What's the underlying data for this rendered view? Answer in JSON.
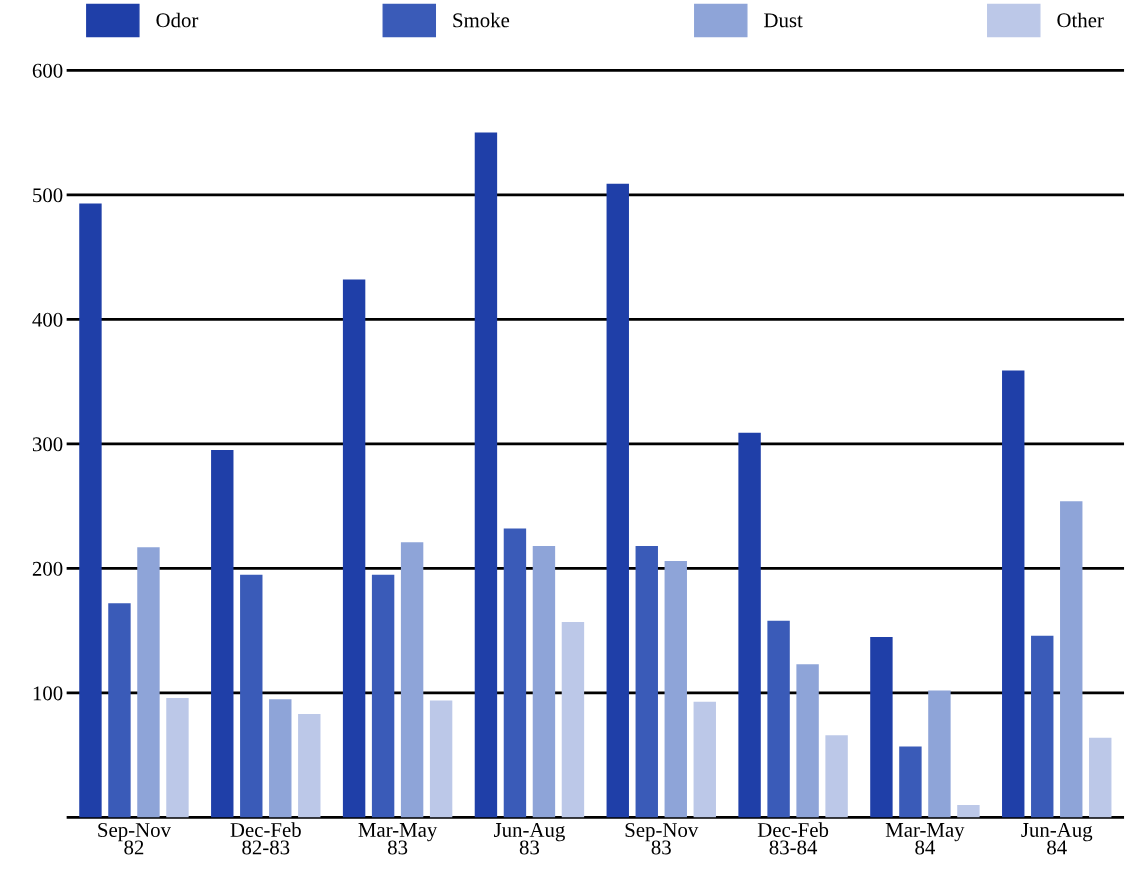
{
  "chart_data": {
    "type": "bar",
    "categories": [
      "Sep-Nov\n82",
      "Dec-Feb\n82-83",
      "Mar-May\n83",
      "Jun-Aug\n83",
      "Sep-Nov\n83",
      "Dec-Feb\n83-84",
      "Mar-May\n84",
      "Jun-Aug\n84"
    ],
    "series": [
      {
        "name": "Odor",
        "color": "#1f3fa8",
        "values": [
          493,
          295,
          432,
          550,
          509,
          309,
          145,
          359
        ]
      },
      {
        "name": "Smoke",
        "color": "#3a5bb8",
        "values": [
          172,
          195,
          195,
          232,
          218,
          158,
          57,
          146
        ]
      },
      {
        "name": "Dust",
        "color": "#8ea4d8",
        "values": [
          217,
          95,
          221,
          218,
          206,
          123,
          102,
          254
        ]
      },
      {
        "name": "Other",
        "color": "#bcc8e8",
        "values": [
          96,
          83,
          94,
          157,
          93,
          66,
          10,
          64
        ]
      }
    ],
    "ylim": [
      0,
      600
    ],
    "yticks": [
      100,
      200,
      300,
      400,
      500,
      600
    ],
    "grid": "y",
    "legend": "top"
  }
}
